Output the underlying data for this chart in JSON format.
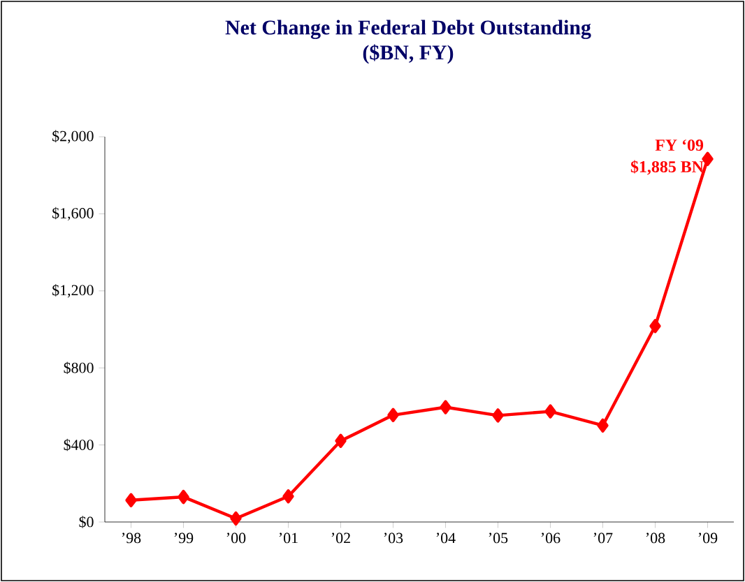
{
  "chart_data": {
    "type": "line",
    "title": "Net Change in Federal Debt Outstanding",
    "subtitle": "($BN, FY)",
    "categories": [
      "’98",
      "’99",
      "’00",
      "’01",
      "’02",
      "’03",
      "’04",
      "’05",
      "’06",
      "’07",
      "’08",
      "’09"
    ],
    "series": [
      {
        "color": "#ff0000",
        "values": [
          113,
          130,
          18,
          133,
          421,
          555,
          596,
          553,
          574,
          501,
          1017,
          1885
        ]
      }
    ],
    "ylim": [
      0,
      2000
    ],
    "yticks": [
      {
        "value": 0,
        "label": "$0"
      },
      {
        "value": 400,
        "label": "$400"
      },
      {
        "value": 800,
        "label": "$800"
      },
      {
        "value": 1200,
        "label": "$1,200"
      },
      {
        "value": 1600,
        "label": "$1,600"
      },
      {
        "value": 2000,
        "label": "$2,000"
      }
    ],
    "annotations": [
      "FY ‘09",
      "$1,885 BN"
    ],
    "grid": false,
    "marker": "diamond",
    "line_style": "solid"
  }
}
